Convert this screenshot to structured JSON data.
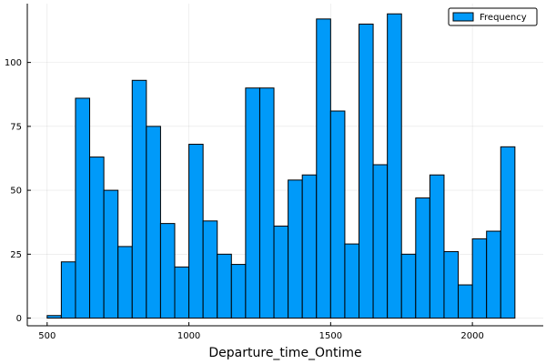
{
  "chart_data": {
    "type": "bar",
    "subtype": "histogram",
    "title": "",
    "xlabel": "Departure_time_Ontime",
    "ylabel": "",
    "bin_edges": [
      500,
      550,
      600,
      650,
      700,
      750,
      800,
      850,
      900,
      950,
      1000,
      1050,
      1100,
      1150,
      1200,
      1250,
      1300,
      1350,
      1400,
      1450,
      1500,
      1550,
      1600,
      1650,
      1700,
      1750,
      1800,
      1850,
      1900,
      1950,
      2000,
      2050,
      2100,
      2150
    ],
    "series": [
      {
        "name": "Frequency",
        "color": "#009af9",
        "values": [
          1,
          22,
          86,
          63,
          50,
          28,
          93,
          75,
          37,
          20,
          68,
          38,
          25,
          21,
          90,
          90,
          36,
          54,
          56,
          117,
          81,
          29,
          115,
          60,
          119,
          25,
          47,
          56,
          26,
          13,
          31,
          34,
          67
        ]
      }
    ],
    "xlim": [
      430,
      2250
    ],
    "ylim": [
      -3,
      123
    ],
    "xticks": [
      500,
      1000,
      1500,
      2000
    ],
    "yticks": [
      0,
      25,
      50,
      75,
      100
    ],
    "grid": true,
    "legend_position": "top-right"
  }
}
